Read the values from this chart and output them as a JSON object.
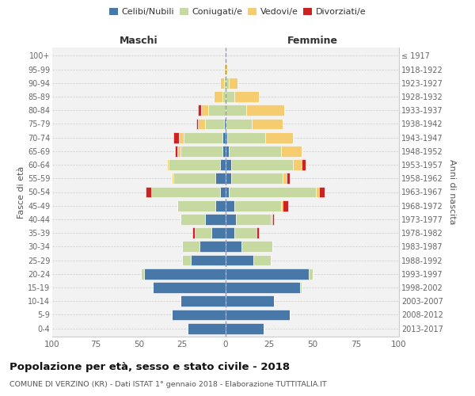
{
  "age_groups": [
    "0-4",
    "5-9",
    "10-14",
    "15-19",
    "20-24",
    "25-29",
    "30-34",
    "35-39",
    "40-44",
    "45-49",
    "50-54",
    "55-59",
    "60-64",
    "65-69",
    "70-74",
    "75-79",
    "80-84",
    "85-89",
    "90-94",
    "95-99",
    "100+"
  ],
  "birth_years": [
    "2013-2017",
    "2008-2012",
    "2003-2007",
    "1998-2002",
    "1993-1997",
    "1988-1992",
    "1983-1987",
    "1978-1982",
    "1973-1977",
    "1968-1972",
    "1963-1967",
    "1958-1962",
    "1953-1957",
    "1948-1952",
    "1943-1947",
    "1938-1942",
    "1933-1937",
    "1928-1932",
    "1923-1927",
    "1918-1922",
    "≤ 1917"
  ],
  "colors": {
    "celibe": "#4878a8",
    "coniugato": "#c5d9a0",
    "vedovo": "#f5cc70",
    "divorziato": "#cc2222"
  },
  "maschi": {
    "celibe": [
      22,
      31,
      26,
      42,
      47,
      20,
      15,
      8,
      12,
      6,
      3,
      6,
      3,
      2,
      2,
      1,
      0,
      0,
      0,
      0,
      0
    ],
    "coniugato": [
      0,
      0,
      0,
      0,
      2,
      5,
      10,
      10,
      14,
      22,
      40,
      24,
      30,
      24,
      22,
      11,
      10,
      2,
      1,
      0,
      0
    ],
    "vedovo": [
      0,
      0,
      0,
      0,
      0,
      0,
      0,
      0,
      0,
      0,
      0,
      1,
      1,
      2,
      3,
      4,
      4,
      5,
      2,
      1,
      0
    ],
    "divorziato": [
      0,
      0,
      0,
      0,
      0,
      0,
      0,
      1,
      0,
      0,
      3,
      0,
      0,
      1,
      3,
      1,
      2,
      0,
      0,
      0,
      0
    ]
  },
  "femmine": {
    "nubile": [
      22,
      37,
      28,
      43,
      48,
      16,
      9,
      5,
      6,
      5,
      2,
      3,
      3,
      2,
      1,
      0,
      0,
      0,
      0,
      0,
      0
    ],
    "coniugata": [
      0,
      0,
      0,
      1,
      2,
      10,
      18,
      13,
      20,
      27,
      50,
      30,
      36,
      30,
      22,
      15,
      12,
      5,
      2,
      0,
      0
    ],
    "vedova": [
      0,
      0,
      0,
      0,
      0,
      0,
      0,
      0,
      1,
      1,
      2,
      2,
      5,
      12,
      16,
      18,
      22,
      14,
      5,
      1,
      0
    ],
    "divorziata": [
      0,
      0,
      0,
      0,
      0,
      0,
      0,
      1,
      1,
      3,
      3,
      2,
      2,
      0,
      0,
      0,
      0,
      0,
      0,
      0,
      0
    ]
  },
  "title": "Popolazione per età, sesso e stato civile - 2018",
  "subtitle": "COMUNE DI VERZINO (KR) - Dati ISTAT 1° gennaio 2018 - Elaborazione TUTTITALIA.IT",
  "xlabel_left": "Maschi",
  "xlabel_right": "Femmine",
  "ylabel_left": "Fasce di età",
  "ylabel_right": "Anni di nascita",
  "xlim": 100
}
